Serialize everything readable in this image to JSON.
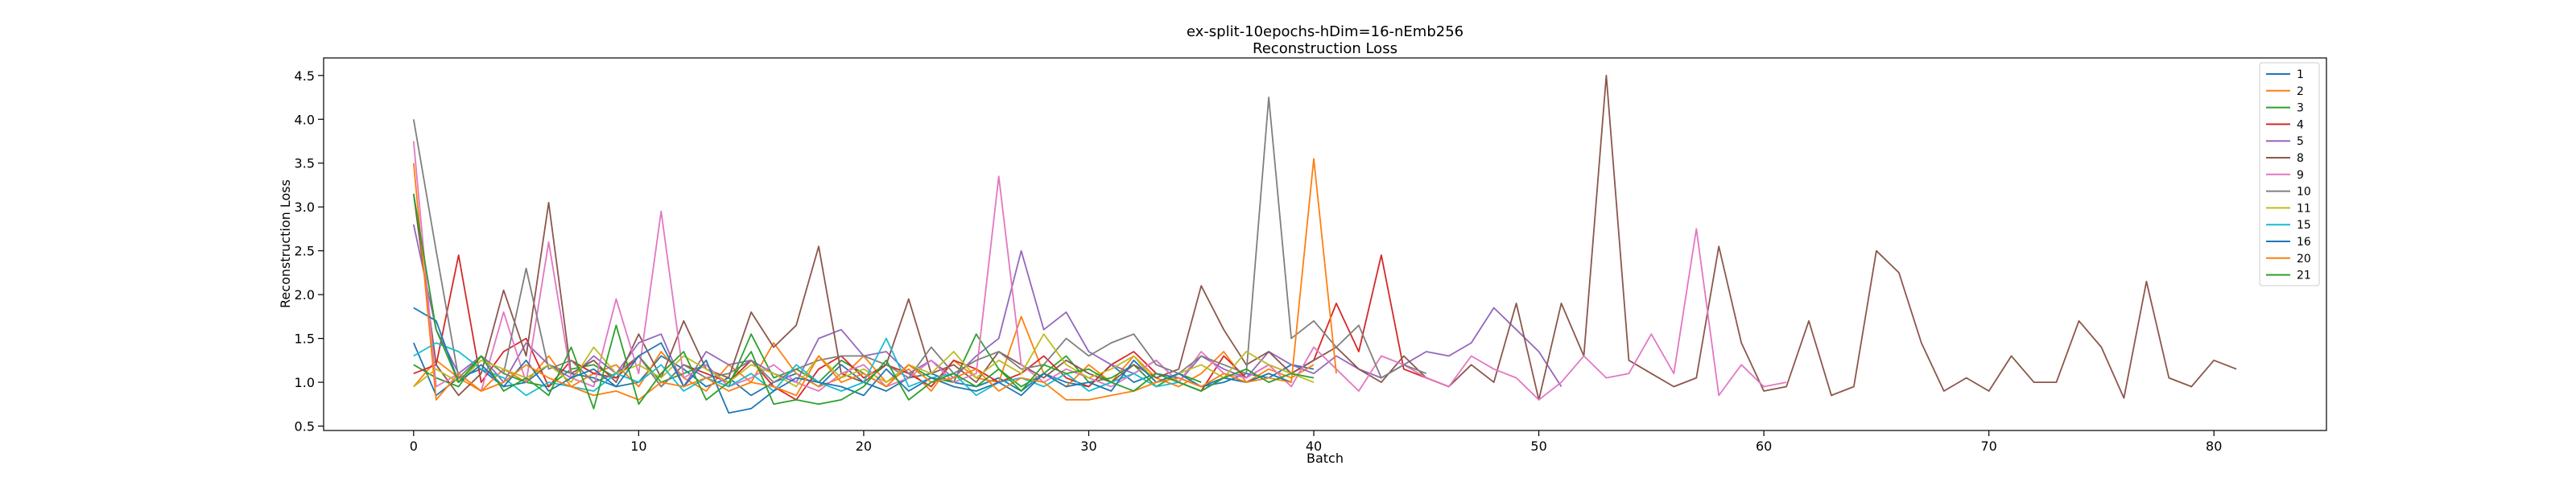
{
  "chart_data": {
    "type": "line",
    "title": "ex-split-10epochs-hDim=16-nEmb256",
    "subtitle": "Reconstruction Loss",
    "xlabel": "Batch",
    "ylabel": "Reconstruction Loss",
    "xlim": [
      -4,
      85
    ],
    "ylim": [
      0.45,
      4.7
    ],
    "xticks": [
      0,
      10,
      20,
      30,
      40,
      50,
      60,
      70,
      80
    ],
    "yticks": [
      0.5,
      1.0,
      1.5,
      2.0,
      2.5,
      3.0,
      3.5,
      4.0,
      4.5
    ],
    "grid": false,
    "legend_position": "top-right",
    "series": [
      {
        "name": "1",
        "color": "#1f77b4",
        "values": [
          1.45,
          0.85,
          1.05,
          1.15,
          0.95,
          1.0,
          1.2,
          1.1,
          1.05,
          0.95,
          1.0,
          1.3,
          1.15,
          0.95,
          1.05,
          0.85,
          1.0,
          1.1,
          0.95,
          1.2,
          1.0,
          0.9,
          1.05,
          1.1,
          1.0,
          0.95,
          1.05,
          0.9,
          1.1,
          1.0,
          0.95,
          1.2,
          1.0,
          1.1,
          1.05,
          0.95,
          1.0,
          1.1,
          1.05,
          1.2,
          1.15
        ]
      },
      {
        "name": "2",
        "color": "#ff7f0e",
        "values": [
          0.95,
          1.25,
          1.05,
          0.9,
          1.15,
          1.0,
          1.3,
          0.95,
          1.1,
          1.2,
          0.95,
          1.35,
          1.05,
          0.9,
          1.2,
          1.0,
          1.45,
          1.1,
          0.95,
          1.05,
          1.3,
          1.0,
          1.15,
          0.9,
          1.25,
          1.05,
          1.0,
          1.75,
          1.1,
          0.95,
          1.2,
          1.0,
          1.3,
          1.05,
          0.95,
          1.1,
          1.35,
          1.0,
          1.15,
          1.05,
          1.2
        ]
      },
      {
        "name": "3",
        "color": "#2ca02c",
        "values": [
          1.2,
          1.05,
          0.95,
          1.3,
          1.1,
          1.0,
          0.95,
          1.15,
          1.2,
          1.05,
          1.3,
          1.0,
          1.1,
          1.2,
          0.95,
          1.55,
          1.05,
          1.15,
          1.0,
          1.25,
          1.1,
          0.95,
          1.2,
          1.05,
          1.0,
          1.55,
          1.15,
          0.95,
          1.1,
          1.3,
          1.0,
          1.05,
          1.2,
          0.95,
          1.1,
          1.0
        ]
      },
      {
        "name": "4",
        "color": "#d62728",
        "values": [
          1.1,
          1.2,
          2.45,
          1.0,
          1.35,
          1.5,
          0.95,
          1.25,
          1.1,
          1.05,
          1.3,
          0.95,
          1.2,
          1.1,
          1.0,
          1.25,
          0.95,
          0.8,
          1.15,
          1.3,
          1.05,
          1.2,
          1.1,
          0.95,
          1.25,
          1.15,
          1.0,
          1.1,
          1.3,
          1.05,
          0.95,
          1.2,
          1.35,
          1.1,
          1.0,
          0.9,
          1.3,
          1.05,
          1.2,
          1.1,
          1.25,
          1.9,
          1.35,
          2.45,
          1.15,
          1.05,
          0.95
        ]
      },
      {
        "name": "5",
        "color": "#9467bd",
        "values": [
          2.8,
          1.6,
          1.1,
          1.3,
          1.0,
          1.45,
          1.2,
          1.05,
          1.3,
          1.1,
          1.45,
          1.55,
          0.95,
          1.35,
          1.2,
          1.25,
          1.1,
          1.0,
          1.5,
          1.6,
          1.3,
          1.35,
          1.1,
          1.25,
          1.05,
          1.3,
          1.5,
          2.5,
          1.6,
          1.8,
          1.35,
          1.2,
          1.1,
          1.25,
          1.0,
          1.3,
          1.15,
          1.05,
          1.35,
          1.2,
          1.1,
          1.3,
          1.15,
          1.05,
          1.2,
          1.35,
          1.3,
          1.45,
          1.85,
          1.6,
          1.35,
          0.95
        ]
      },
      {
        "name": "8",
        "color": "#8c564b",
        "values": [
          3.15,
          1.2,
          0.85,
          1.1,
          2.05,
          1.3,
          3.05,
          1.1,
          1.25,
          1.0,
          1.55,
          1.05,
          1.7,
          1.15,
          1.05,
          1.8,
          1.4,
          1.65,
          2.55,
          1.1,
          1.0,
          1.2,
          1.95,
          1.1,
          1.2,
          1.0,
          1.35,
          1.2,
          1.05,
          1.25,
          1.1,
          1.0,
          1.2,
          1.05,
          1.15,
          2.1,
          1.6,
          1.2,
          1.35,
          1.1,
          1.25,
          1.4,
          1.15,
          1.0,
          1.3,
          1.05,
          0.95,
          1.2,
          1.0,
          1.9,
          0.8,
          1.9,
          1.3,
          4.5,
          1.25,
          1.1,
          0.95,
          1.05,
          2.55,
          1.45,
          0.9,
          0.95,
          1.7,
          0.85,
          0.95,
          2.5,
          2.25,
          1.45,
          0.9,
          1.05,
          0.9,
          1.3,
          1.0,
          1.0,
          1.7,
          1.4,
          0.82,
          2.15,
          1.05,
          0.95,
          1.25,
          1.15
        ]
      },
      {
        "name": "9",
        "color": "#e377c2",
        "values": [
          3.75,
          0.95,
          1.1,
          0.9,
          1.8,
          1.0,
          2.6,
          1.05,
          0.95,
          1.95,
          1.1,
          2.95,
          1.05,
          1.2,
          0.95,
          1.05,
          1.2,
          1.0,
          0.9,
          1.1,
          1.2,
          0.95,
          1.05,
          1.25,
          1.0,
          1.1,
          3.35,
          1.2,
          1.0,
          1.15,
          1.05,
          0.95,
          1.1,
          1.25,
          1.0,
          1.35,
          1.1,
          1.05,
          1.2,
          0.95,
          1.4,
          1.15,
          0.9,
          1.3,
          1.2,
          1.05,
          0.95,
          1.3,
          1.15,
          1.05,
          0.8,
          1.0,
          1.3,
          1.05,
          1.1,
          1.55,
          1.1,
          2.75,
          0.85,
          1.2,
          0.95,
          1.0
        ]
      },
      {
        "name": "10",
        "color": "#7f7f7f",
        "values": [
          4.0,
          2.5,
          1.05,
          1.3,
          1.1,
          2.3,
          1.15,
          1.25,
          1.0,
          1.1,
          1.3,
          0.95,
          1.2,
          1.05,
          1.1,
          1.25,
          1.0,
          1.15,
          1.25,
          1.3,
          1.3,
          1.2,
          1.05,
          1.4,
          1.1,
          1.25,
          1.35,
          1.15,
          1.2,
          1.5,
          1.3,
          1.45,
          1.55,
          1.2,
          1.1,
          1.3,
          1.2,
          1.1,
          4.25,
          1.5,
          1.7,
          1.4,
          1.65,
          1.05,
          1.2,
          1.1
        ]
      },
      {
        "name": "11",
        "color": "#bcbd22",
        "values": [
          0.95,
          1.15,
          1.0,
          1.25,
          1.15,
          1.05,
          1.2,
          1.0,
          1.4,
          1.1,
          1.2,
          1.05,
          1.3,
          1.15,
          1.0,
          1.2,
          1.1,
          0.95,
          1.3,
          1.05,
          1.15,
          1.0,
          1.2,
          1.1,
          1.35,
          1.05,
          1.25,
          1.1,
          1.55,
          1.2,
          1.05,
          1.15,
          1.3,
          1.0,
          1.1,
          1.2,
          1.05,
          1.35,
          1.2,
          1.1,
          1.0
        ]
      },
      {
        "name": "15",
        "color": "#17becf",
        "values": [
          1.3,
          1.45,
          1.35,
          1.15,
          1.05,
          0.85,
          1.0,
          0.95,
          0.9,
          1.1,
          1.0,
          1.2,
          0.9,
          1.05,
          0.95,
          1.1,
          0.9,
          1.2,
          1.0,
          0.9,
          1.0,
          1.5,
          0.95,
          1.05,
          1.1,
          0.85,
          1.0,
          1.05,
          0.95,
          1.1,
          0.9,
          1.0,
          1.1,
          0.95,
          1.0,
          0.9,
          1.05,
          1.0,
          1.1,
          1.0
        ]
      },
      {
        "name": "16",
        "color": "#1f77b4",
        "values": [
          1.85,
          1.7,
          1.0,
          1.2,
          0.95,
          1.25,
          0.9,
          1.05,
          1.15,
          0.95,
          1.3,
          1.45,
          0.95,
          1.25,
          0.65,
          0.7,
          0.9,
          1.05,
          1.0,
          0.95,
          0.85,
          1.15,
          0.9,
          1.05,
          0.95,
          0.9,
          1.0,
          0.85,
          1.1,
          0.95,
          1.0,
          0.9,
          1.25,
          1.0,
          1.1,
          0.95,
          1.05,
          1.0,
          1.1,
          1.0
        ]
      },
      {
        "name": "20",
        "color": "#ff7f0e",
        "values": [
          3.5,
          0.8,
          1.1,
          0.9,
          1.0,
          1.2,
          1.05,
          0.95,
          0.85,
          0.9,
          0.8,
          1.0,
          0.95,
          1.05,
          0.9,
          1.0,
          0.95,
          0.85,
          1.3,
          1.0,
          1.1,
          0.95,
          1.2,
          1.0,
          1.05,
          1.15,
          0.9,
          1.05,
          1.0,
          0.8,
          0.8,
          0.85,
          0.9,
          1.0,
          1.05,
          0.95,
          1.1,
          1.0,
          1.05,
          1.0,
          3.55,
          1.1
        ]
      },
      {
        "name": "21",
        "color": "#2ca02c",
        "values": [
          3.15,
          1.6,
          1.0,
          1.3,
          0.9,
          1.05,
          0.85,
          1.4,
          0.7,
          1.65,
          0.75,
          1.1,
          1.35,
          0.8,
          1.0,
          1.35,
          0.75,
          0.8,
          0.75,
          0.8,
          0.95,
          1.25,
          0.8,
          1.0,
          1.1,
          0.95,
          1.15,
          0.9,
          1.2,
          1.1,
          1.15,
          1.0,
          0.9,
          1.1,
          1.0,
          0.9,
          1.05,
          1.15,
          1.0,
          1.1,
          1.05
        ]
      }
    ]
  }
}
